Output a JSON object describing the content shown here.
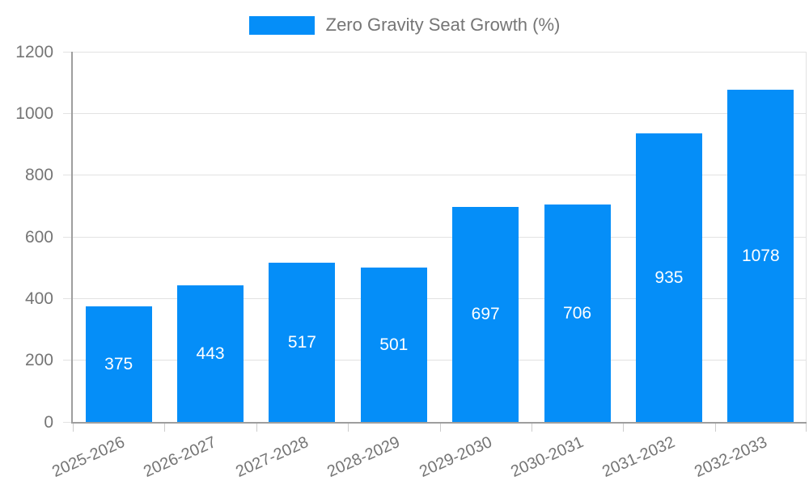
{
  "legend": {
    "label": "Zero Gravity Seat Growth (%)",
    "swatch_color": "#058ef8"
  },
  "chart_data": {
    "type": "bar",
    "title": "",
    "xlabel": "",
    "ylabel": "",
    "categories": [
      "2025-2026",
      "2026-2027",
      "2027-2028",
      "2028-2029",
      "2029-2030",
      "2030-2031",
      "2031-2032",
      "2032-2033"
    ],
    "values": [
      375,
      443,
      517,
      501,
      697,
      706,
      935,
      1078
    ],
    "series_name": "Zero Gravity Seat Growth (%)",
    "ylim": [
      0,
      1200
    ],
    "yticks": [
      0,
      200,
      400,
      600,
      800,
      1000,
      1200
    ],
    "grid": true,
    "legend_position": "top",
    "bar_color": "#058ef8",
    "value_label_color": "#ffffff",
    "axis_text_color": "#757575",
    "value_labels_inside_bars": true,
    "x_label_rotation_deg": -24
  }
}
